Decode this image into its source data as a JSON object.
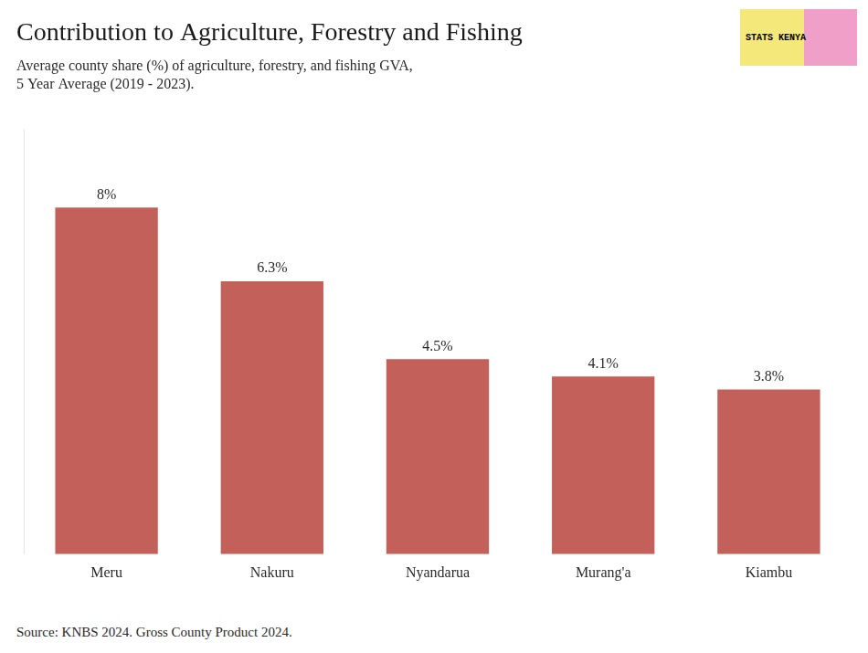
{
  "chart_data": {
    "type": "bar",
    "title": "Contribution to Agriculture, Forestry and Fishing",
    "subtitle": [
      "Average county share (%) of agriculture, forestry, and fishing GVA,",
      "5 Year Average (2019 - 2023)."
    ],
    "source": "Source: KNBS 2024. Gross County Product 2024.",
    "annotations": [
      "STATS KENYA"
    ],
    "categories": [
      "Meru",
      "Nakuru",
      "Nyandarua",
      "Murang'a",
      "Kiambu"
    ],
    "values": [
      8.0,
      6.3,
      4.5,
      4.1,
      3.8
    ],
    "value_labels": [
      "8%",
      "6.3%",
      "4.5%",
      "4.1%",
      "3.8%"
    ],
    "data_labels": true,
    "color": "#c4605a",
    "ylim": [
      0,
      9.8
    ],
    "tick_labels": "x",
    "grid": false
  }
}
